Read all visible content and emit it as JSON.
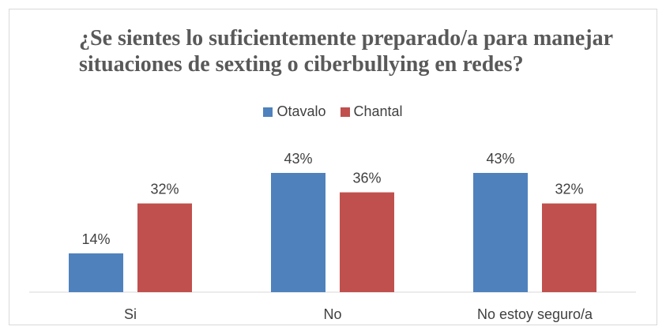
{
  "chart_data": {
    "type": "bar",
    "title_lines": [
      "¿Se sientes lo suficientemente preparado/a para manejar",
      "situaciones de sexting o ciberbullying en redes?"
    ],
    "categories": [
      "Si",
      "No",
      "No estoy seguro/a"
    ],
    "series": [
      {
        "name": "Otavalo",
        "color": "#4f81bd",
        "values": [
          14,
          43,
          43
        ],
        "labels": [
          "14%",
          "43%",
          "43%"
        ]
      },
      {
        "name": "Chantal",
        "color": "#c0504d",
        "values": [
          32,
          36,
          32
        ],
        "labels": [
          "32%",
          "36%",
          "32%"
        ]
      }
    ],
    "ylim": [
      0,
      50
    ],
    "value_format": "percent",
    "legend_position": "top",
    "grid": false
  }
}
